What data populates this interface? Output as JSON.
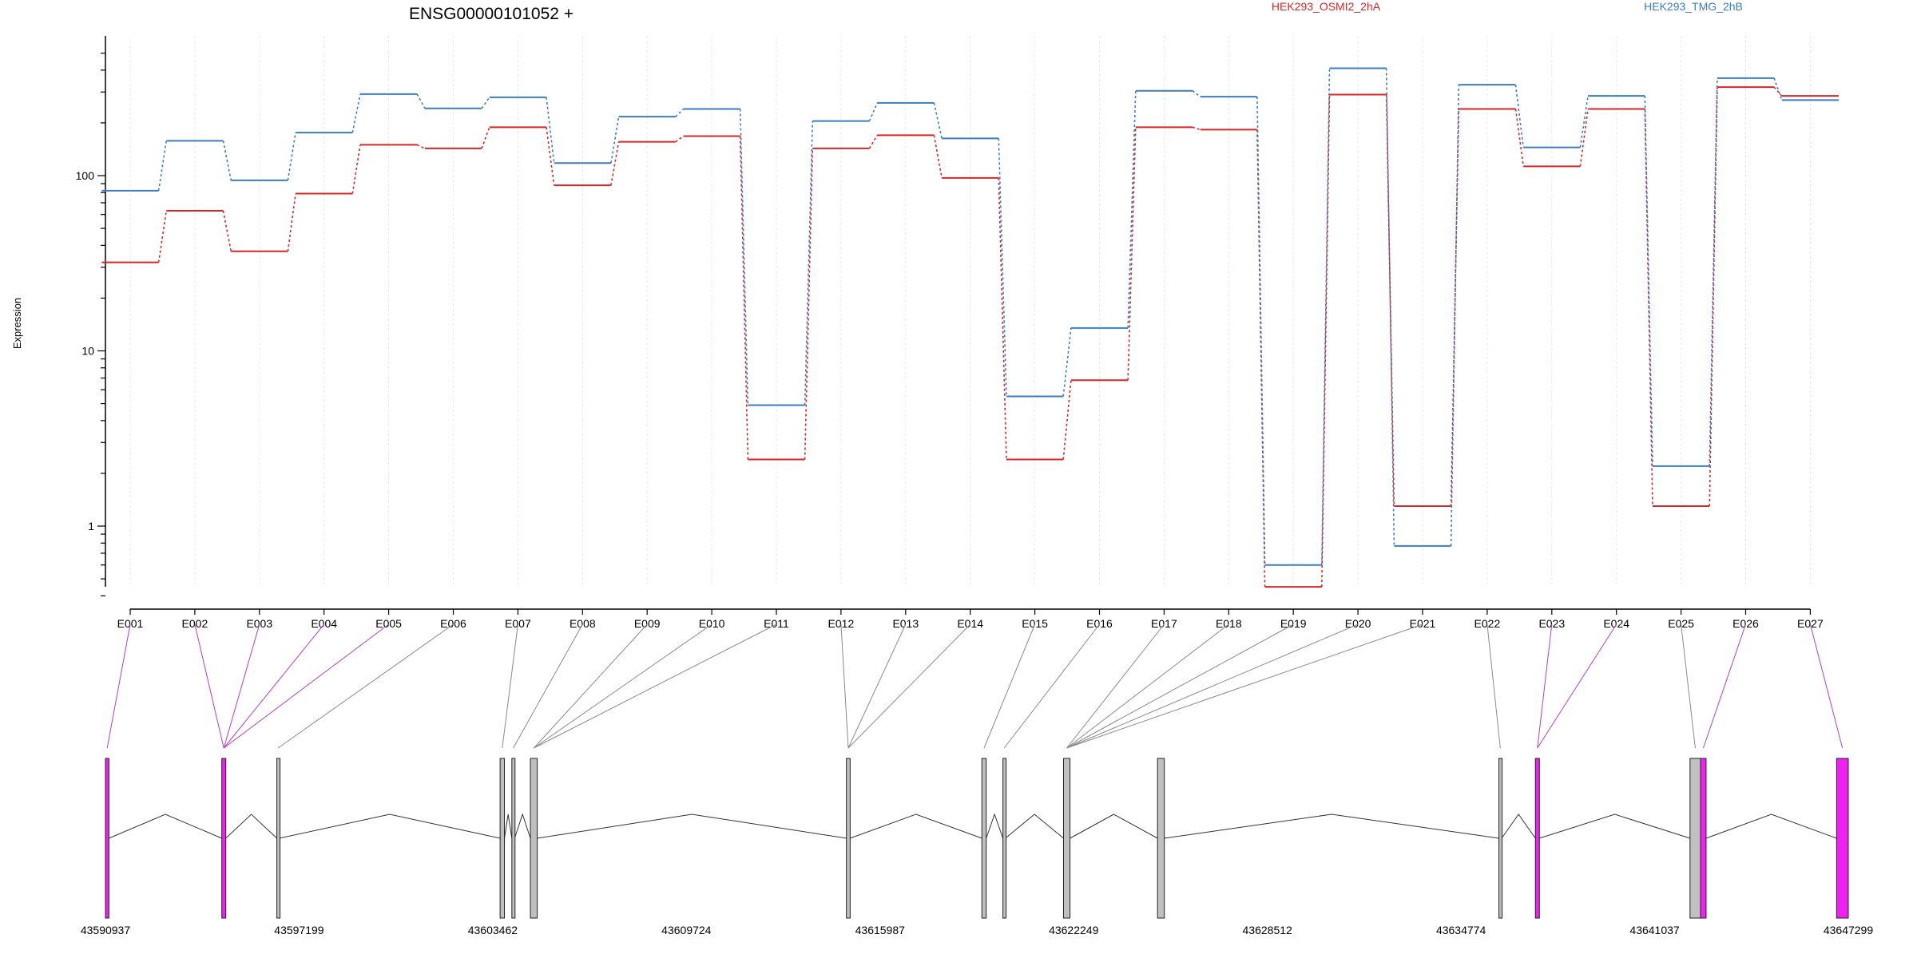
{
  "chart_data": {
    "type": "line",
    "title": "ENSG00000101052 +",
    "ylabel": "Expression",
    "yscale": "log",
    "ylim": [
      0.4,
      500
    ],
    "yticks": [
      1,
      10,
      100
    ],
    "categories": [
      "E001",
      "E002",
      "E003",
      "E004",
      "E005",
      "E006",
      "E007",
      "E008",
      "E009",
      "E010",
      "E011",
      "E012",
      "E013",
      "E014",
      "E015",
      "E016",
      "E017",
      "E018",
      "E019",
      "E020",
      "E021",
      "E022",
      "E023",
      "E024",
      "E025",
      "E026",
      "E027"
    ],
    "series": [
      {
        "name": "HEK293_OSMI2_2hA",
        "color": "#d62728",
        "values": [
          32,
          63,
          37,
          79,
          150,
          143,
          189,
          88,
          156,
          168,
          2.4,
          143,
          170,
          97,
          2.4,
          6.8,
          189,
          183,
          0.45,
          290,
          1.3,
          240,
          113,
          240,
          1.3,
          320,
          285
        ]
      },
      {
        "name": "HEK293_TMG_2hB",
        "color": "#3a7dc4",
        "values": [
          82,
          158,
          94,
          176,
          292,
          242,
          280,
          118,
          217,
          240,
          4.9,
          205,
          260,
          163,
          5.5,
          13.5,
          305,
          282,
          0.6,
          410,
          0.77,
          330,
          145,
          285,
          2.2,
          360,
          270
        ]
      }
    ],
    "genomic_axis": {
      "labels": [
        "43590937",
        "43597199",
        "43603462",
        "43609724",
        "43615987",
        "43622249",
        "43628512",
        "43634774",
        "43641037",
        "43647299"
      ],
      "min": 43590937,
      "max": 43647299
    },
    "exons": [
      {
        "start": 43590937,
        "end": 43591050,
        "highlight": true
      },
      {
        "start": 43594700,
        "end": 43594830,
        "highlight": true
      },
      {
        "start": 43596480,
        "end": 43596560,
        "highlight": false
      },
      {
        "start": 43603700,
        "end": 43603840,
        "highlight": false
      },
      {
        "start": 43604080,
        "end": 43604170,
        "highlight": false
      },
      {
        "start": 43604680,
        "end": 43604900,
        "highlight": false
      },
      {
        "start": 43614900,
        "end": 43615020,
        "highlight": false
      },
      {
        "start": 43619280,
        "end": 43619420,
        "highlight": false
      },
      {
        "start": 43619960,
        "end": 43620040,
        "highlight": false
      },
      {
        "start": 43621920,
        "end": 43622130,
        "highlight": false
      },
      {
        "start": 43624960,
        "end": 43625180,
        "highlight": false
      },
      {
        "start": 43636000,
        "end": 43636090,
        "highlight": false
      },
      {
        "start": 43637180,
        "end": 43637310,
        "highlight": true
      },
      {
        "start": 43642180,
        "end": 43642520,
        "highlight": false
      },
      {
        "start": 43642520,
        "end": 43642700,
        "highlight": true
      },
      {
        "start": 43646920,
        "end": 43647299,
        "highlight": true
      }
    ],
    "bin_map": [
      0,
      1,
      1,
      1,
      1,
      2,
      3,
      4,
      5,
      5,
      5,
      6,
      6,
      6,
      7,
      8,
      9,
      9,
      9,
      9,
      9,
      11,
      12,
      12,
      13,
      14,
      15
    ],
    "highlight_color": "#ee22ee",
    "exon_fill_color": "#c0c0c0"
  }
}
